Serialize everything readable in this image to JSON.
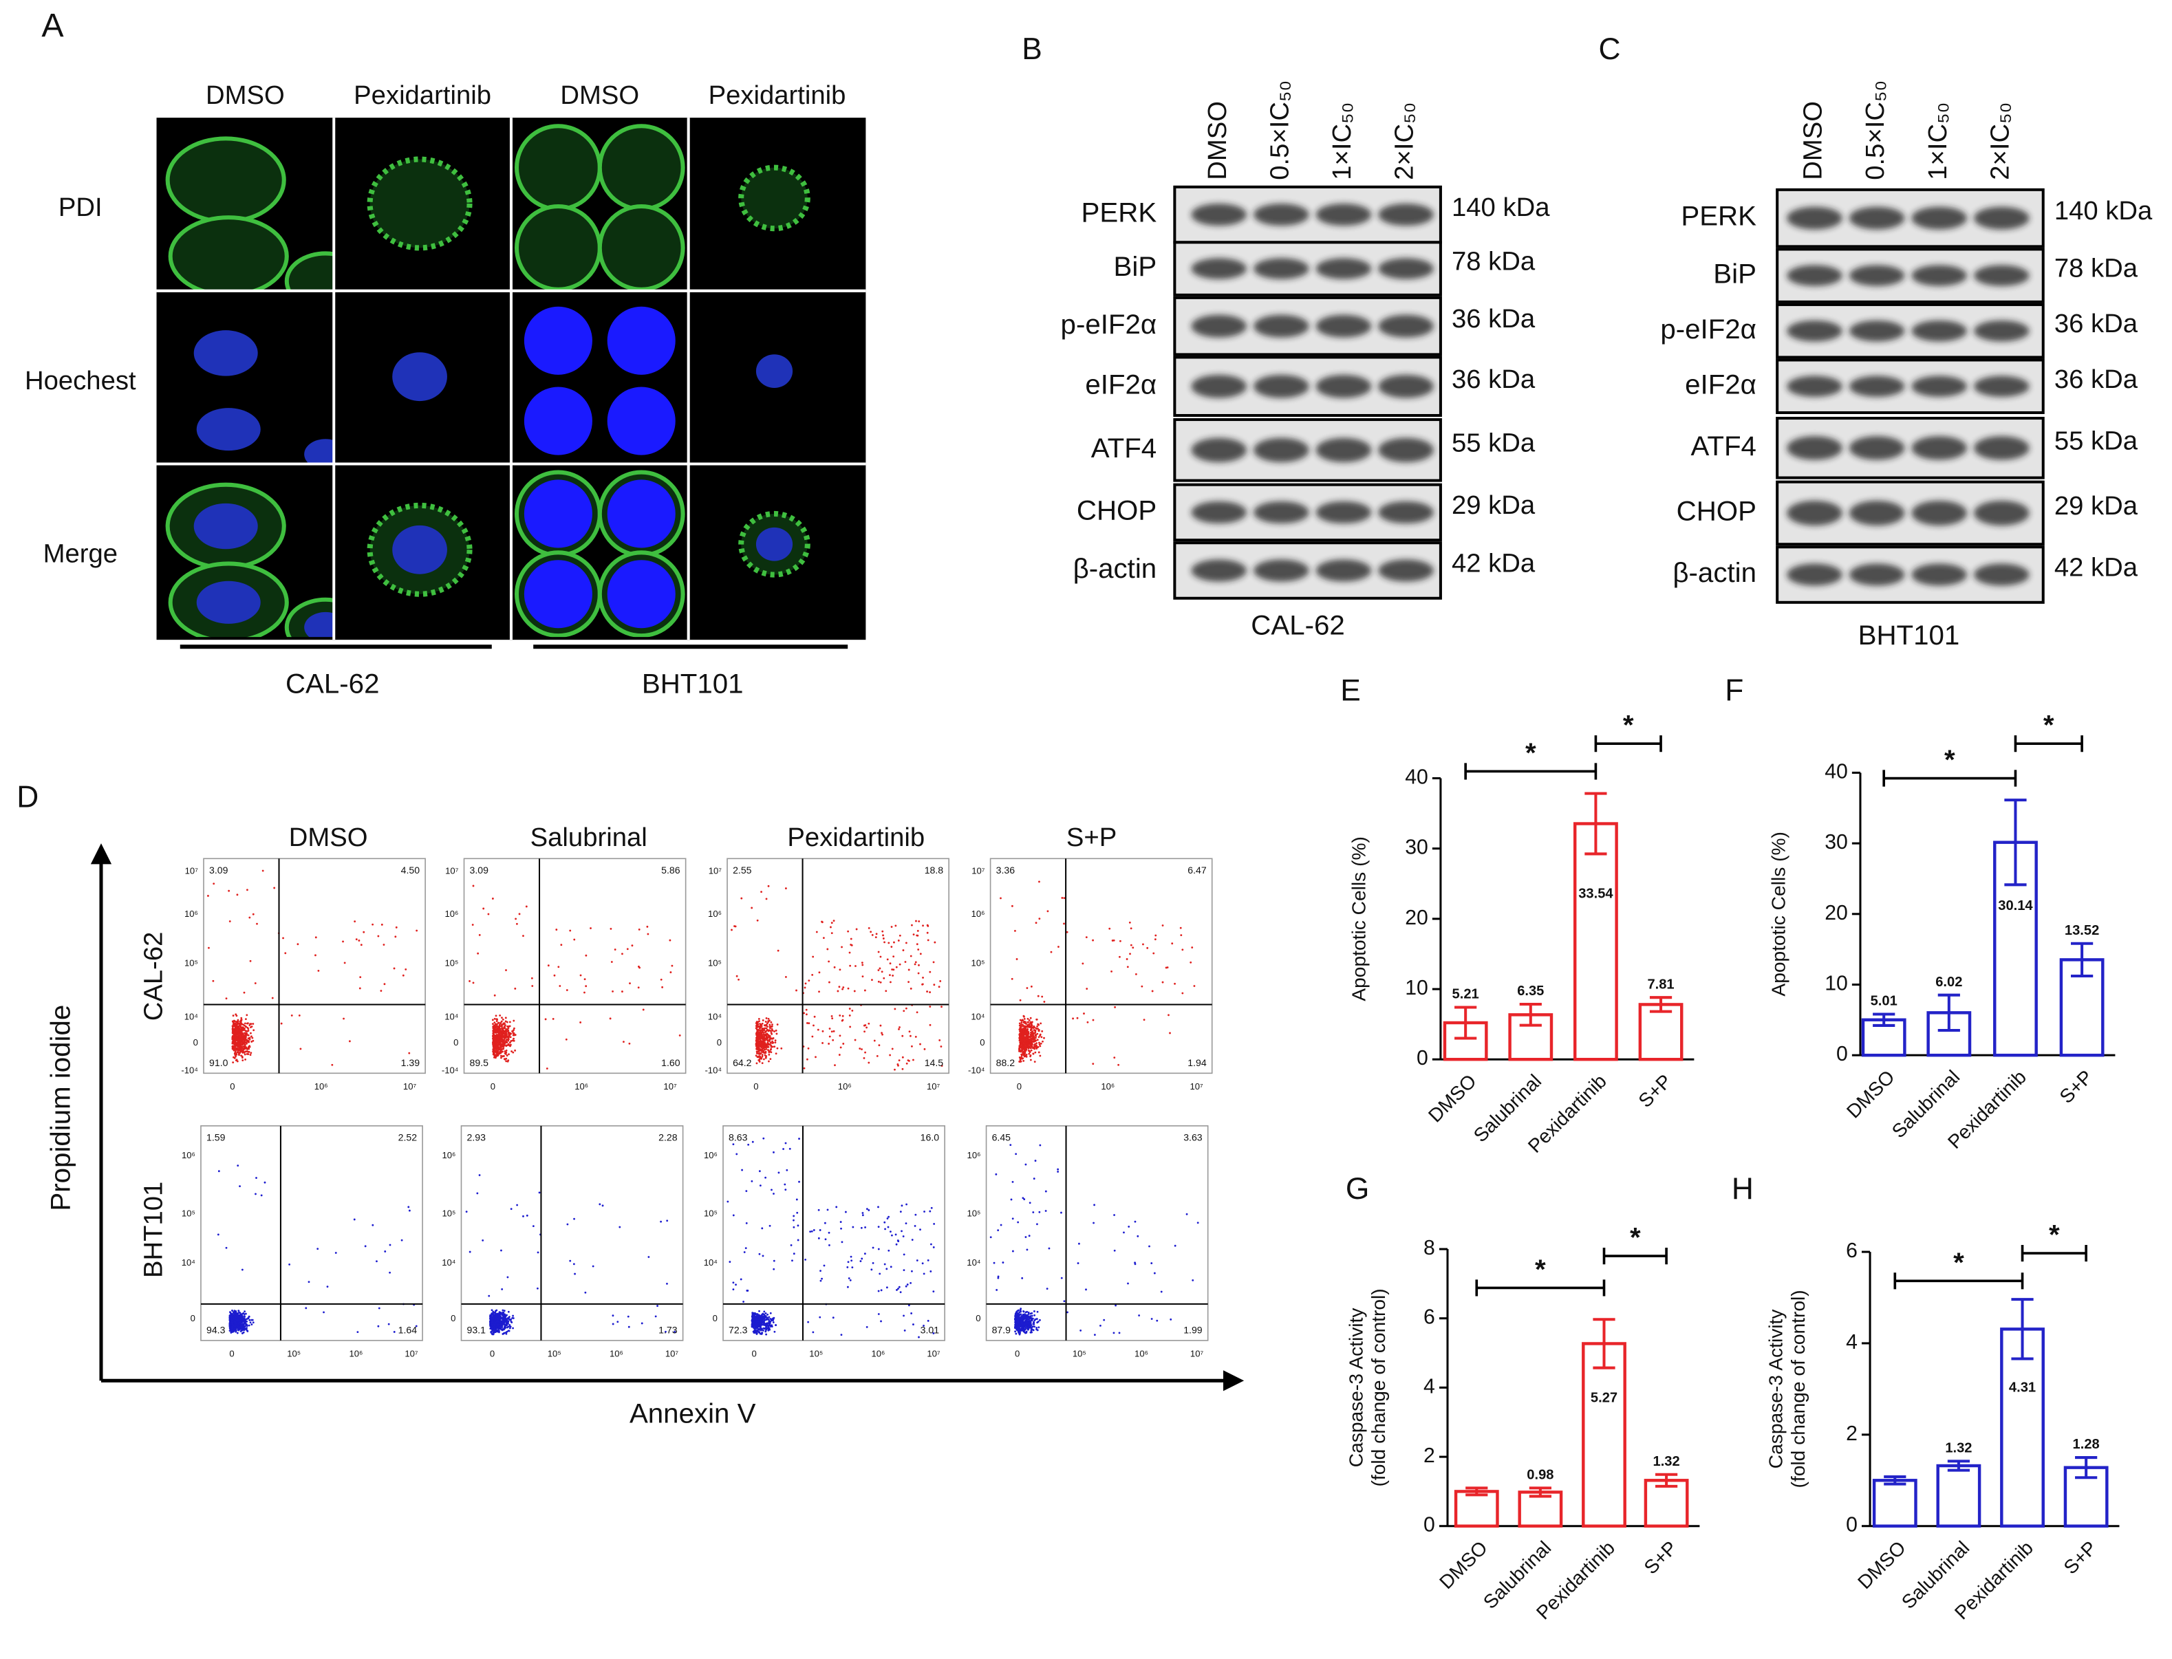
{
  "panel_a": {
    "label": "A",
    "columns": [
      "DMSO",
      "Pexidartinib",
      "DMSO",
      "Pexidartinib"
    ],
    "rows": [
      "PDI",
      "Hoechest",
      "Merge"
    ],
    "cell_lines": [
      "CAL-62",
      "BHT101"
    ]
  },
  "panel_b": {
    "label": "B",
    "lanes": [
      "DMSO",
      "0.5×IC₅₀",
      "1×IC₅₀",
      "2×IC₅₀"
    ],
    "proteins": [
      "PERK",
      "BiP",
      "p-eIF2α",
      "eIF2α",
      "ATF4",
      "CHOP",
      "β-actin"
    ],
    "sizes": [
      "140 kDa",
      "78 kDa",
      "36 kDa",
      "36 kDa",
      "55 kDa",
      "29 kDa",
      "42 kDa"
    ],
    "cell_line": "CAL-62"
  },
  "panel_c": {
    "label": "C",
    "lanes": [
      "DMSO",
      "0.5×IC₅₀",
      "1×IC₅₀",
      "2×IC₅₀"
    ],
    "proteins": [
      "PERK",
      "BiP",
      "p-eIF2α",
      "eIF2α",
      "ATF4",
      "CHOP",
      "β-actin"
    ],
    "sizes": [
      "140 kDa",
      "78 kDa",
      "36 kDa",
      "36 kDa",
      "55 kDa",
      "29 kDa",
      "42 kDa"
    ],
    "cell_line": "BHT101"
  },
  "panel_d": {
    "label": "D",
    "y_label": "Propidium iodide",
    "x_label": "Annexin V",
    "columns": [
      "DMSO",
      "Salubrinal",
      "Pexidartinib",
      "S+P"
    ],
    "rows": [
      {
        "name": "CAL-62",
        "color": "#e0201e",
        "y_ticks": [
          "10⁷",
          "10⁶",
          "10⁵",
          "10⁴",
          "0",
          "-10⁴"
        ],
        "x_ticks": [
          "0",
          "10⁶",
          "10⁷"
        ],
        "plots": [
          {
            "ul": "3.09",
            "ur": "4.50",
            "ll": "91.0",
            "lr": "1.39"
          },
          {
            "ul": "3.09",
            "ur": "5.86",
            "ll": "89.5",
            "lr": "1.60"
          },
          {
            "ul": "2.55",
            "ur": "18.8",
            "ll": "64.2",
            "lr": "14.5"
          },
          {
            "ul": "3.36",
            "ur": "6.47",
            "ll": "88.2",
            "lr": "1.94"
          }
        ]
      },
      {
        "name": "BHT101",
        "color": "#1c1ccf",
        "y_ticks": [
          "10⁶",
          "10⁵",
          "10⁴",
          "0"
        ],
        "x_ticks": [
          "0",
          "10⁵",
          "10⁶",
          "10⁷"
        ],
        "plots": [
          {
            "ul": "1.59",
            "ur": "2.52",
            "ll": "94.3",
            "lr": "1.64"
          },
          {
            "ul": "2.93",
            "ur": "2.28",
            "ll": "93.1",
            "lr": "1.73"
          },
          {
            "ul": "8.63",
            "ur": "16.0",
            "ll": "72.3",
            "lr": "3.01"
          },
          {
            "ul": "6.45",
            "ur": "3.63",
            "ll": "87.9",
            "lr": "1.99"
          }
        ]
      }
    ]
  },
  "chart_data": [
    {
      "panel": "E",
      "type": "bar",
      "y_label": "Apoptotic Cells (%)",
      "categories": [
        "DMSO",
        "Salubrinal",
        "Pexidartinib",
        "S+P"
      ],
      "values": [
        5.21,
        6.35,
        33.54,
        7.81
      ],
      "errors": [
        2.2,
        1.5,
        4.3,
        1.0
      ],
      "color": "#e8252a",
      "ylim": [
        0,
        40
      ],
      "yticks": [
        0,
        10,
        20,
        30,
        40
      ],
      "significance": [
        {
          "from": "DMSO",
          "to": "Pexidartinib",
          "label": "*"
        },
        {
          "from": "Pexidartinib",
          "to": "S+P",
          "label": "*"
        }
      ]
    },
    {
      "panel": "F",
      "type": "bar",
      "y_label": "Apoptotic Cells (%)",
      "categories": [
        "DMSO",
        "Salubrinal",
        "Pexidartinib",
        "S+P"
      ],
      "values": [
        5.01,
        6.02,
        30.14,
        13.52
      ],
      "errors": [
        0.8,
        2.5,
        6.0,
        2.3
      ],
      "color": "#2323c8",
      "ylim": [
        0,
        40
      ],
      "yticks": [
        0,
        10,
        20,
        30,
        40
      ],
      "significance": [
        {
          "from": "DMSO",
          "to": "Pexidartinib",
          "label": "*"
        },
        {
          "from": "Pexidartinib",
          "to": "S+P",
          "label": "*"
        }
      ]
    },
    {
      "panel": "G",
      "type": "bar",
      "y_label": [
        "Caspase-3 Activity",
        "(fold change of control)"
      ],
      "categories": [
        "DMSO",
        "Salubrinal",
        "Pexidartinib",
        "S+P"
      ],
      "values": [
        1.0,
        0.98,
        5.27,
        1.32
      ],
      "value_labels": [
        null,
        "0.98",
        "5.27",
        "1.32"
      ],
      "errors": [
        0.1,
        0.12,
        0.7,
        0.17
      ],
      "color": "#e8252a",
      "ylim": [
        0,
        8
      ],
      "yticks": [
        0,
        2,
        4,
        6,
        8
      ],
      "significance": [
        {
          "from": "DMSO",
          "to": "Pexidartinib",
          "label": "*"
        },
        {
          "from": "Pexidartinib",
          "to": "S+P",
          "label": "*"
        }
      ]
    },
    {
      "panel": "H",
      "type": "bar",
      "y_label": [
        "Caspase-3 Activity",
        "(fold change of control)"
      ],
      "categories": [
        "DMSO",
        "Salubrinal",
        "Pexidartinib",
        "S+P"
      ],
      "values": [
        1.0,
        1.32,
        4.31,
        1.28
      ],
      "value_labels": [
        null,
        "1.32",
        "4.31",
        "1.28"
      ],
      "errors": [
        0.08,
        0.1,
        0.65,
        0.22
      ],
      "color": "#2323c8",
      "ylim": [
        0,
        6
      ],
      "yticks": [
        0,
        2,
        4,
        6
      ],
      "significance": [
        {
          "from": "DMSO",
          "to": "Pexidartinib",
          "label": "*"
        },
        {
          "from": "Pexidartinib",
          "to": "S+P",
          "label": "*"
        }
      ]
    }
  ]
}
